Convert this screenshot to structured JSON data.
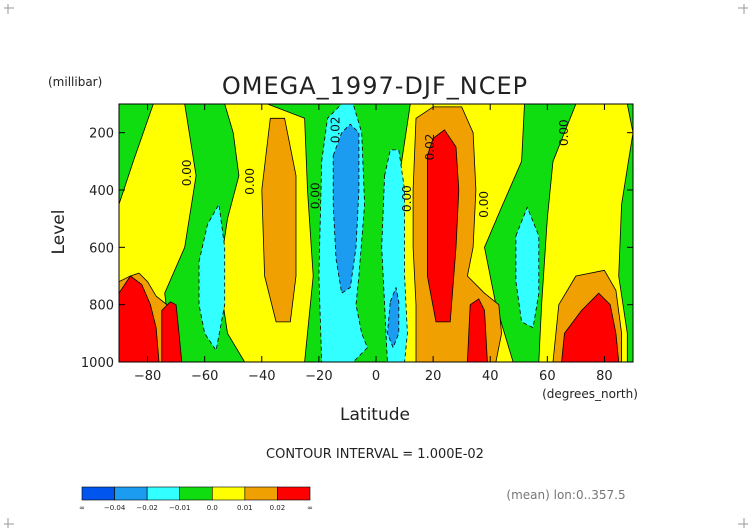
{
  "chart_data": {
    "type": "heatmap",
    "title": "OMEGA_1997-DJF_NCEP",
    "xlabel": "Latitude",
    "ylabel": "Level",
    "x_units": "(degrees_north)",
    "y_units": "(millibar)",
    "xlim": [
      -90,
      90
    ],
    "ylim": [
      1000,
      100
    ],
    "y_direction": "reversed",
    "x_ticks": [
      -80,
      -60,
      -40,
      -20,
      0,
      20,
      40,
      60,
      80
    ],
    "x_tick_labels": [
      "−80",
      "−60",
      "−40",
      "−20",
      "0",
      "20",
      "40",
      "60",
      "80"
    ],
    "y_ticks": [
      200,
      400,
      600,
      800,
      1000
    ],
    "y_tick_labels": [
      "200",
      "400",
      "600",
      "800",
      "1000"
    ],
    "grid": false,
    "contour_interval_text": "CONTOUR INTERVAL = 1.000E-02",
    "note_text": "(mean) lon:0..357.5",
    "contour_labels": [
      {
        "text": "0.00",
        "lat": -66,
        "level": 340
      },
      {
        "text": "0.00",
        "lat": -44,
        "level": 370
      },
      {
        "text": "0.00",
        "lat": -21,
        "level": 420
      },
      {
        "text": "0.02",
        "lat": -14,
        "level": 190
      },
      {
        "text": "0.00",
        "lat": 11,
        "level": 430
      },
      {
        "text": "0.02",
        "lat": 19,
        "level": 250
      },
      {
        "text": "0.00",
        "lat": 38,
        "level": 450
      },
      {
        "text": "0.00",
        "lat": 66,
        "level": 200
      }
    ],
    "colorbar": {
      "levels": [
        "∞",
        "−0.04",
        "−0.02",
        "−0.01",
        "0.0",
        "0.01",
        "0.02",
        "∞"
      ],
      "colors": [
        "#0055ee",
        "#1b9cf0",
        "#32ffff",
        "#10dd10",
        "#ffff00",
        "#f0a000",
        "#ff0000"
      ]
    },
    "regions": [
      {
        "fill": "#10dd10",
        "points": [
          [
            -90,
            100
          ],
          [
            90,
            100
          ],
          [
            90,
            1000
          ],
          [
            -90,
            1000
          ]
        ]
      },
      {
        "fill": "#ffff00",
        "points": [
          [
            -90,
            450
          ],
          [
            -85,
            300
          ],
          [
            -78,
            100
          ],
          [
            -67,
            100
          ],
          [
            -63,
            350
          ],
          [
            -67,
            600
          ],
          [
            -74,
            760
          ],
          [
            -72,
            920
          ],
          [
            -68,
            1000
          ],
          [
            -90,
            1000
          ]
        ]
      },
      {
        "fill": "#ffff00",
        "points": [
          [
            -53,
            100
          ],
          [
            -38,
            100
          ],
          [
            -25,
            150
          ],
          [
            -24,
            400
          ],
          [
            -22,
            700
          ],
          [
            -25,
            1000
          ],
          [
            -46,
            1000
          ],
          [
            -52,
            900
          ],
          [
            -55,
            700
          ],
          [
            -52,
            500
          ],
          [
            -48,
            350
          ],
          [
            -50,
            200
          ]
        ]
      },
      {
        "fill": "#ffff00",
        "points": [
          [
            7,
            420
          ],
          [
            9,
            300
          ],
          [
            12,
            100
          ],
          [
            52,
            100
          ],
          [
            51,
            300
          ],
          [
            44,
            460
          ],
          [
            38,
            600
          ],
          [
            42,
            800
          ],
          [
            48,
            1000
          ],
          [
            4,
            1000
          ],
          [
            6,
            700
          ]
        ]
      },
      {
        "fill": "#ffff00",
        "points": [
          [
            62,
            300
          ],
          [
            70,
            100
          ],
          [
            88,
            100
          ],
          [
            90,
            200
          ],
          [
            86,
            450
          ],
          [
            85,
            700
          ],
          [
            88,
            900
          ],
          [
            88,
            1000
          ],
          [
            57,
            1000
          ],
          [
            58,
            800
          ],
          [
            60,
            500
          ]
        ]
      },
      {
        "fill": "#f0a000",
        "points": [
          [
            -90,
            720
          ],
          [
            -86,
            700
          ],
          [
            -83,
            690
          ],
          [
            -80,
            720
          ],
          [
            -77,
            770
          ],
          [
            -72,
            810
          ],
          [
            -70,
            880
          ],
          [
            -69,
            1000
          ],
          [
            -90,
            1000
          ]
        ]
      },
      {
        "fill": "#f0a000",
        "points": [
          [
            -37,
            150
          ],
          [
            -32,
            150
          ],
          [
            -28,
            350
          ],
          [
            -28,
            700
          ],
          [
            -30,
            860
          ],
          [
            -35,
            860
          ],
          [
            -39,
            700
          ],
          [
            -40,
            400
          ]
        ]
      },
      {
        "fill": "#f0a000",
        "points": [
          [
            14,
            150
          ],
          [
            20,
            110
          ],
          [
            30,
            110
          ],
          [
            34,
            200
          ],
          [
            35,
            400
          ],
          [
            34,
            600
          ],
          [
            32,
            700
          ],
          [
            38,
            760
          ],
          [
            43,
            800
          ],
          [
            44,
            900
          ],
          [
            42,
            1000
          ],
          [
            14,
            1000
          ],
          [
            14,
            800
          ],
          [
            13,
            600
          ],
          [
            13,
            400
          ]
        ]
      },
      {
        "fill": "#f0a000",
        "points": [
          [
            64,
            800
          ],
          [
            70,
            700
          ],
          [
            80,
            680
          ],
          [
            84,
            750
          ],
          [
            86,
            900
          ],
          [
            86,
            1000
          ],
          [
            62,
            1000
          ]
        ]
      },
      {
        "fill": "#ff0000",
        "points": [
          [
            -90,
            760
          ],
          [
            -86,
            700
          ],
          [
            -82,
            730
          ],
          [
            -79,
            800
          ],
          [
            -77,
            880
          ],
          [
            -76,
            1000
          ],
          [
            -90,
            1000
          ]
        ]
      },
      {
        "fill": "#ff0000",
        "points": [
          [
            -75,
            820
          ],
          [
            -72,
            790
          ],
          [
            -70,
            800
          ],
          [
            -69,
            900
          ],
          [
            -68,
            1000
          ],
          [
            -75,
            1000
          ]
        ]
      },
      {
        "fill": "#ff0000",
        "points": [
          [
            18,
            280
          ],
          [
            20,
            220
          ],
          [
            24,
            190
          ],
          [
            28,
            250
          ],
          [
            29,
            400
          ],
          [
            28,
            600
          ],
          [
            26,
            860
          ],
          [
            21,
            860
          ],
          [
            18,
            700
          ],
          [
            18,
            500
          ]
        ]
      },
      {
        "fill": "#ff0000",
        "points": [
          [
            33,
            800
          ],
          [
            36,
            780
          ],
          [
            38,
            820
          ],
          [
            39,
            1000
          ],
          [
            32,
            1000
          ]
        ]
      },
      {
        "fill": "#ff0000",
        "points": [
          [
            66,
            900
          ],
          [
            72,
            820
          ],
          [
            78,
            760
          ],
          [
            82,
            800
          ],
          [
            84,
            900
          ],
          [
            85,
            1000
          ],
          [
            65,
            1000
          ]
        ]
      },
      {
        "fill": "#32ffff",
        "points": [
          [
            -62,
            650
          ],
          [
            -59,
            520
          ],
          [
            -55,
            450
          ],
          [
            -53,
            600
          ],
          [
            -53,
            800
          ],
          [
            -56,
            960
          ],
          [
            -60,
            900
          ],
          [
            -62,
            800
          ]
        ]
      },
      {
        "fill": "#32ffff",
        "points": [
          [
            -19,
            300
          ],
          [
            -17,
            150
          ],
          [
            -12,
            100
          ],
          [
            -8,
            100
          ],
          [
            -5,
            200
          ],
          [
            -4,
            450
          ],
          [
            -6,
            700
          ],
          [
            -7,
            800
          ],
          [
            -5,
            900
          ],
          [
            -3,
            950
          ],
          [
            -8,
            1000
          ],
          [
            -19,
            1000
          ],
          [
            -20,
            700
          ]
        ]
      },
      {
        "fill": "#32ffff",
        "points": [
          [
            3,
            350
          ],
          [
            5,
            260
          ],
          [
            8,
            260
          ],
          [
            10,
            400
          ],
          [
            10,
            700
          ],
          [
            11,
            900
          ],
          [
            10,
            1000
          ],
          [
            4,
            1000
          ],
          [
            3,
            800
          ],
          [
            2,
            600
          ]
        ]
      },
      {
        "fill": "#32ffff",
        "points": [
          [
            49,
            560
          ],
          [
            53,
            460
          ],
          [
            57,
            560
          ],
          [
            57,
            760
          ],
          [
            55,
            880
          ],
          [
            51,
            860
          ],
          [
            49,
            720
          ]
        ]
      },
      {
        "fill": "#1b9cf0",
        "points": [
          [
            -15,
            280
          ],
          [
            -12,
            200
          ],
          [
            -9,
            170
          ],
          [
            -6,
            200
          ],
          [
            -6,
            400
          ],
          [
            -7,
            600
          ],
          [
            -9,
            740
          ],
          [
            -12,
            760
          ],
          [
            -14,
            640
          ],
          [
            -15,
            450
          ]
        ]
      },
      {
        "fill": "#1b9cf0",
        "points": [
          [
            5,
            790
          ],
          [
            7,
            740
          ],
          [
            8,
            790
          ],
          [
            8,
            900
          ],
          [
            6,
            950
          ],
          [
            4,
            900
          ]
        ]
      }
    ]
  }
}
